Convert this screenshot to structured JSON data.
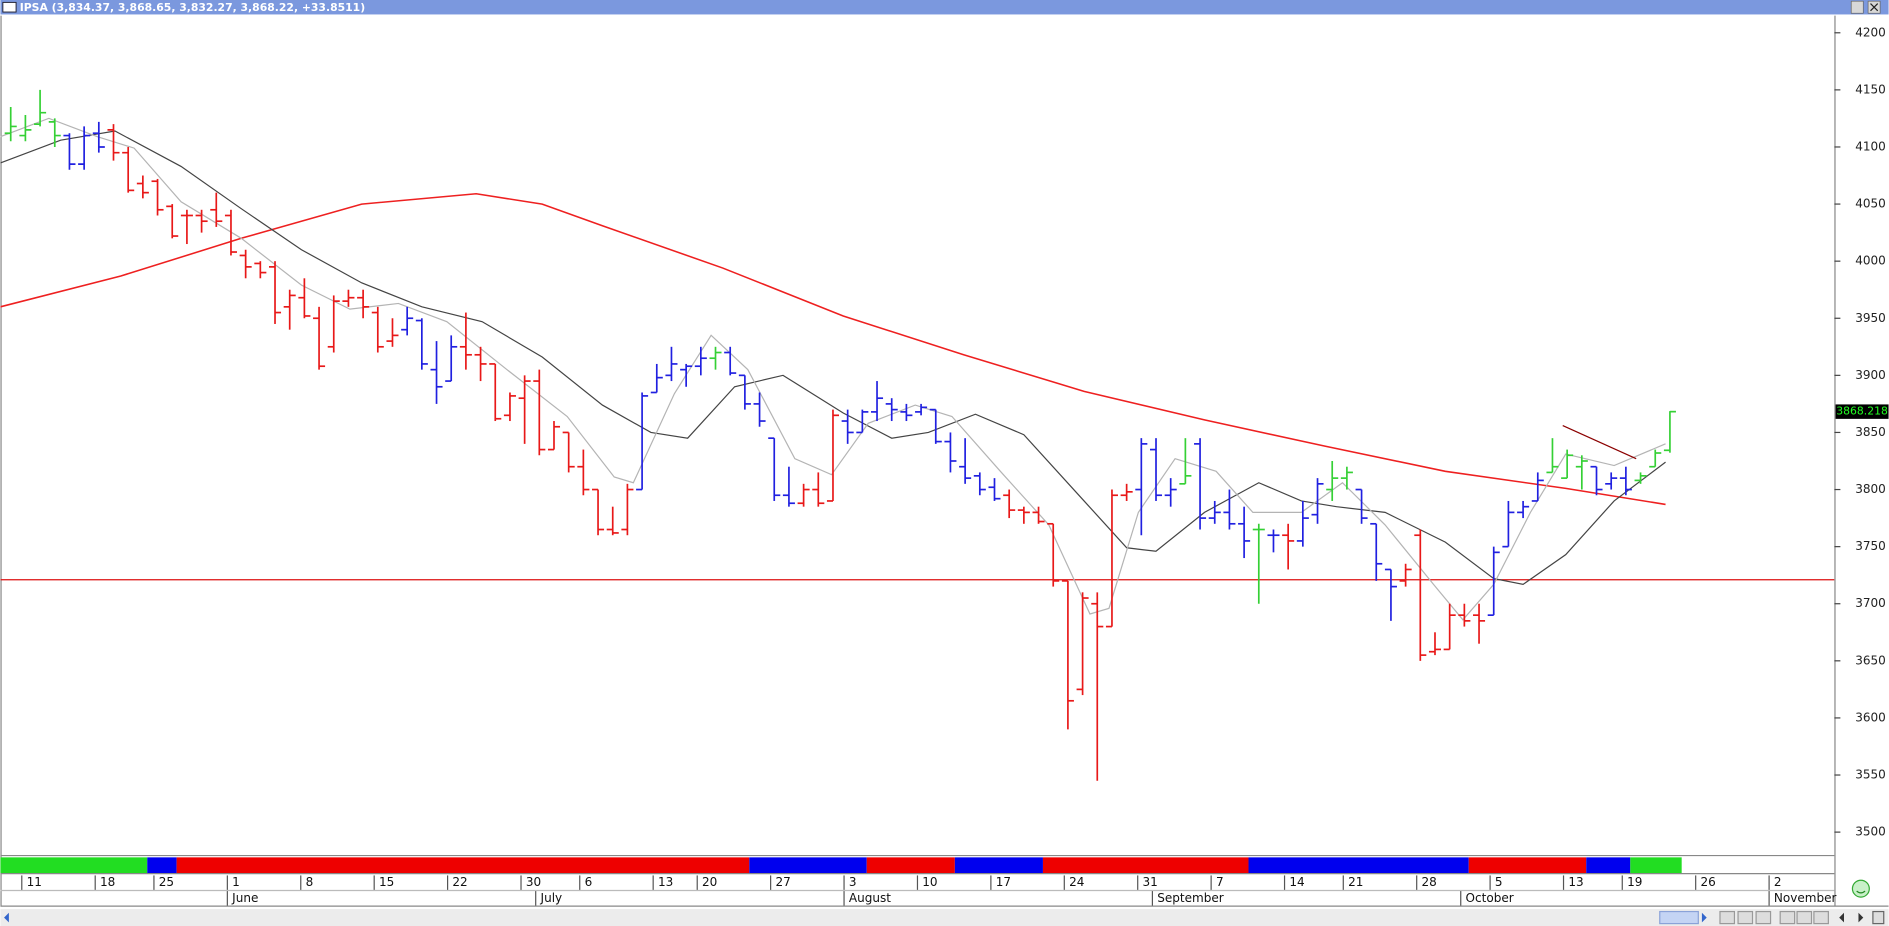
{
  "chart_data": {
    "type": "ohlc",
    "title": "IPSA (3,834.37, 3,868.65, 3,832.27, 3,868.22, +33.8511)",
    "x": [
      0,
      1,
      2,
      3,
      4,
      5,
      6,
      7,
      8,
      9,
      10,
      11,
      12,
      13,
      14,
      15,
      16,
      17,
      18,
      19,
      20,
      21,
      22,
      23,
      24,
      25,
      26,
      27,
      28,
      29,
      30,
      31,
      32,
      33,
      34,
      35,
      36,
      37,
      38,
      39,
      40,
      41,
      42,
      43,
      44,
      45,
      46,
      47,
      48,
      49,
      50,
      51,
      52,
      53,
      54,
      55,
      56,
      57,
      58,
      59,
      60,
      61,
      62,
      63,
      64,
      65,
      66,
      67,
      68,
      69,
      70,
      71,
      72,
      73,
      74,
      75,
      76,
      77,
      78,
      79,
      80,
      81,
      82,
      83,
      84,
      85,
      86,
      87,
      88,
      89,
      90,
      91,
      92,
      93,
      94,
      95,
      96,
      97,
      98,
      99,
      100,
      101,
      102,
      103,
      104,
      105,
      106,
      107,
      108,
      109,
      110,
      111,
      112,
      113
    ],
    "open": [
      4112,
      4110,
      4120,
      4122,
      4110,
      4085,
      4112,
      4115,
      4095,
      4068,
      4070,
      4048,
      4040,
      4040,
      4045,
      4040,
      4005,
      3998,
      3995,
      3960,
      3968,
      3950,
      3925,
      3965,
      3968,
      3955,
      3930,
      3940,
      3948,
      3905,
      3895,
      3925,
      3918,
      3910,
      3865,
      3880,
      3895,
      3835,
      3850,
      3820,
      3800,
      3765,
      3765,
      3800,
      3885,
      3900,
      3905,
      3908,
      3915,
      3920,
      3900,
      3875,
      3845,
      3795,
      3788,
      3800,
      3790,
      3860,
      3850,
      3868,
      3875,
      3868,
      3868,
      3870,
      3842,
      3820,
      3812,
      3802,
      3795,
      3782,
      3780,
      3770,
      3720,
      3625,
      3700,
      3680,
      3795,
      3800,
      3835,
      3795,
      3805,
      3840,
      3775,
      3780,
      3770,
      3765,
      3760,
      3760,
      3755,
      3778,
      3800,
      3810,
      3800,
      3770,
      3730,
      3720,
      3760,
      3658,
      3660,
      3690,
      3690,
      3690,
      3750,
      3780,
      3790,
      3815,
      3810,
      3820,
      3820,
      3805,
      3810,
      3808,
      3820,
      3834.37
    ],
    "high": [
      4135,
      4128,
      4150,
      4125,
      4112,
      4118,
      4122,
      4120,
      4100,
      4075,
      4072,
      4050,
      4045,
      4045,
      4060,
      4045,
      4010,
      4000,
      4000,
      3975,
      3985,
      3960,
      3970,
      3975,
      3975,
      3960,
      3950,
      3960,
      3950,
      3930,
      3935,
      3955,
      3925,
      3910,
      3885,
      3900,
      3905,
      3860,
      3850,
      3835,
      3800,
      3785,
      3805,
      3885,
      3910,
      3925,
      3910,
      3925,
      3925,
      3925,
      3900,
      3885,
      3845,
      3820,
      3805,
      3815,
      3870,
      3870,
      3870,
      3895,
      3880,
      3875,
      3875,
      3870,
      3850,
      3845,
      3815,
      3810,
      3800,
      3785,
      3785,
      3770,
      3720,
      3710,
      3710,
      3800,
      3805,
      3845,
      3845,
      3810,
      3845,
      3845,
      3790,
      3800,
      3785,
      3770,
      3765,
      3770,
      3790,
      3810,
      3825,
      3820,
      3800,
      3770,
      3730,
      3735,
      3765,
      3675,
      3700,
      3700,
      3700,
      3750,
      3790,
      3790,
      3815,
      3845,
      3835,
      3830,
      3820,
      3815,
      3820,
      3815,
      3835,
      3868.65
    ],
    "low": [
      4105,
      4105,
      4118,
      4100,
      4080,
      4080,
      4095,
      4088,
      4060,
      4055,
      4040,
      4020,
      4015,
      4025,
      4030,
      4005,
      3985,
      3985,
      3945,
      3940,
      3950,
      3905,
      3920,
      3960,
      3950,
      3920,
      3925,
      3935,
      3905,
      3875,
      3895,
      3905,
      3895,
      3860,
      3860,
      3840,
      3830,
      3835,
      3815,
      3795,
      3760,
      3760,
      3760,
      3800,
      3885,
      3895,
      3890,
      3900,
      3905,
      3900,
      3870,
      3855,
      3790,
      3785,
      3785,
      3785,
      3790,
      3840,
      3850,
      3860,
      3860,
      3860,
      3865,
      3840,
      3815,
      3805,
      3795,
      3790,
      3775,
      3770,
      3770,
      3715,
      3590,
      3620,
      3545,
      3680,
      3790,
      3760,
      3790,
      3785,
      3805,
      3765,
      3770,
      3765,
      3740,
      3700,
      3745,
      3730,
      3750,
      3770,
      3790,
      3800,
      3770,
      3720,
      3685,
      3715,
      3650,
      3655,
      3660,
      3680,
      3665,
      3690,
      3750,
      3775,
      3790,
      3815,
      3810,
      3800,
      3795,
      3800,
      3795,
      3805,
      3820,
      3832.27
    ],
    "close": [
      4118,
      4115,
      4130,
      4110,
      4085,
      4110,
      4100,
      4095,
      4062,
      4060,
      4045,
      4022,
      4040,
      4035,
      4035,
      4008,
      3995,
      3990,
      3955,
      3970,
      3952,
      3908,
      3965,
      3968,
      3960,
      3925,
      3935,
      3950,
      3910,
      3890,
      3925,
      3918,
      3910,
      3862,
      3882,
      3895,
      3835,
      3855,
      3820,
      3800,
      3765,
      3762,
      3800,
      3882,
      3898,
      3910,
      3908,
      3915,
      3920,
      3902,
      3875,
      3860,
      3795,
      3788,
      3800,
      3788,
      3865,
      3850,
      3868,
      3880,
      3870,
      3865,
      3872,
      3842,
      3825,
      3810,
      3800,
      3792,
      3782,
      3780,
      3772,
      3720,
      3615,
      3705,
      3680,
      3795,
      3798,
      3840,
      3795,
      3800,
      3812,
      3775,
      3780,
      3770,
      3755,
      3765,
      3760,
      3755,
      3775,
      3805,
      3810,
      3815,
      3775,
      3735,
      3715,
      3730,
      3655,
      3660,
      3690,
      3685,
      3685,
      3745,
      3780,
      3785,
      3808,
      3820,
      3830,
      3825,
      3800,
      3810,
      3800,
      3812,
      3832,
      3868.22
    ],
    "colors": [
      "#35d035",
      "#35d035",
      "#35d035",
      "#35d035",
      "#2020e0",
      "#2020e0",
      "#2020e0",
      "#e81818",
      "#e81818",
      "#e81818",
      "#e81818",
      "#e81818",
      "#e81818",
      "#e81818",
      "#e81818",
      "#e81818",
      "#e81818",
      "#e81818",
      "#e81818",
      "#e81818",
      "#e81818",
      "#e81818",
      "#e81818",
      "#e81818",
      "#e81818",
      "#e81818",
      "#e81818",
      "#2020e0",
      "#2020e0",
      "#2020e0",
      "#2020e0",
      "#e81818",
      "#e81818",
      "#e81818",
      "#e81818",
      "#e81818",
      "#e81818",
      "#e81818",
      "#e81818",
      "#e81818",
      "#e81818",
      "#e81818",
      "#e81818",
      "#2020e0",
      "#2020e0",
      "#2020e0",
      "#2020e0",
      "#2020e0",
      "#35d035",
      "#2020e0",
      "#2020e0",
      "#2020e0",
      "#2020e0",
      "#2020e0",
      "#e81818",
      "#e81818",
      "#e81818",
      "#2020e0",
      "#2020e0",
      "#2020e0",
      "#2020e0",
      "#2020e0",
      "#2020e0",
      "#2020e0",
      "#2020e0",
      "#2020e0",
      "#2020e0",
      "#2020e0",
      "#e81818",
      "#e81818",
      "#e81818",
      "#e81818",
      "#e81818",
      "#e81818",
      "#e81818",
      "#e81818",
      "#e81818",
      "#2020e0",
      "#2020e0",
      "#2020e0",
      "#35d035",
      "#2020e0",
      "#2020e0",
      "#2020e0",
      "#2020e0",
      "#35d035",
      "#2020e0",
      "#e81818",
      "#2020e0",
      "#2020e0",
      "#35d035",
      "#35d035",
      "#2020e0",
      "#2020e0",
      "#2020e0",
      "#e81818",
      "#e81818",
      "#e81818",
      "#e81818",
      "#e81818",
      "#e81818",
      "#2020e0",
      "#2020e0",
      "#2020e0",
      "#2020e0",
      "#35d035",
      "#35d035",
      "#35d035",
      "#2020e0",
      "#2020e0",
      "#2020e0",
      "#35d035",
      "#35d035",
      "#35d035"
    ],
    "overlays": [
      {
        "color": "#ee2020",
        "x": [
          -0.7,
          7.5,
          15.7,
          23.9,
          31.7,
          36.2,
          40.3,
          48.5,
          56.7,
          64.9,
          73.1,
          81.3,
          89.5,
          97.7,
          105.9,
          112.7
        ],
        "values": [
          3960,
          3987,
          4020,
          4050,
          4059,
          4050,
          4031,
          3994,
          3952,
          3918,
          3886,
          3861,
          3838,
          3816,
          3801,
          3787
        ]
      },
      {
        "color": "#444444",
        "x": [
          -0.7,
          3.4,
          7.1,
          11.6,
          15.7,
          19.8,
          23.9,
          28.0,
          32.1,
          36.2,
          40.3,
          43.6,
          46.1,
          49.3,
          52.6,
          56.7,
          60.0,
          62.5,
          65.7,
          69.0,
          73.1,
          76.0,
          78.0,
          81.3,
          85.0,
          87.9,
          90.3,
          93.6,
          97.7,
          101.0,
          103.0,
          105.9,
          109.2,
          112.7
        ],
        "values": [
          4086,
          4106,
          4114,
          4083,
          4046,
          4010,
          3981,
          3960,
          3947,
          3916,
          3874,
          3850,
          3845,
          3890,
          3900,
          3867,
          3845,
          3850,
          3866,
          3848,
          3790,
          3749,
          3746,
          3780,
          3806,
          3790,
          3785,
          3780,
          3754,
          3722,
          3717,
          3743,
          3790,
          3824
        ]
      },
      {
        "color": "#b4b4b4",
        "x": [
          -0.7,
          2.6,
          5.9,
          8.4,
          11.6,
          15.7,
          19.8,
          23.1,
          26.4,
          29.7,
          33.8,
          37.9,
          41.1,
          42.4,
          45.2,
          47.7,
          50.2,
          53.4,
          55.9,
          58.4,
          61.6,
          64.1,
          67.4,
          70.7,
          73.5,
          74.8,
          76.8,
          79.3,
          82.1,
          84.6,
          87.9,
          90.7,
          93.6,
          96.9,
          98.9,
          101.0,
          103.5,
          105.9,
          109.2,
          112.7
        ],
        "values": [
          4109,
          4125,
          4109,
          4099,
          4052,
          4020,
          3979,
          3958,
          3963,
          3947,
          3905,
          3864,
          3811,
          3806,
          3884,
          3935,
          3905,
          3827,
          3813,
          3858,
          3874,
          3864,
          3816,
          3769,
          3691,
          3696,
          3780,
          3827,
          3816,
          3780,
          3780,
          3806,
          3769,
          3717,
          3686,
          3717,
          3780,
          3831,
          3821,
          3840
        ]
      },
      {
        "color": "#8b0000",
        "x": [
          105.7,
          110.7
        ],
        "values": [
          3856,
          3827
        ]
      }
    ],
    "hline": {
      "value": 3721,
      "color": "#dd1010"
    },
    "last_value": 3868.218,
    "regime_band": [
      {
        "start": -0.7,
        "end": 9.3,
        "color": "#22dd22"
      },
      {
        "start": 9.3,
        "end": 11.3,
        "color": "#0000ee"
      },
      {
        "start": 11.3,
        "end": 50.3,
        "color": "#ee0000"
      },
      {
        "start": 50.3,
        "end": 58.3,
        "color": "#0000ee"
      },
      {
        "start": 58.3,
        "end": 64.3,
        "color": "#ee0000"
      },
      {
        "start": 64.3,
        "end": 70.3,
        "color": "#0000ee"
      },
      {
        "start": 70.3,
        "end": 84.3,
        "color": "#ee0000"
      },
      {
        "start": 84.3,
        "end": 99.3,
        "color": "#0000ee"
      },
      {
        "start": 99.3,
        "end": 107.3,
        "color": "#ee0000"
      },
      {
        "start": 107.3,
        "end": 110.3,
        "color": "#0000ee"
      },
      {
        "start": 110.3,
        "end": 113.8,
        "color": "#22dd22"
      }
    ],
    "xlim": [
      -0.7,
      124.2
    ],
    "ylim": [
      3480,
      4215
    ],
    "yticks": [
      3500,
      3550,
      3600,
      3650,
      3700,
      3750,
      3800,
      3850,
      3900,
      3950,
      4000,
      4050,
      4100,
      4150,
      4200
    ],
    "xticks": [
      {
        "value": 1,
        "label": "11"
      },
      {
        "value": 6,
        "label": "18"
      },
      {
        "value": 10,
        "label": "25"
      },
      {
        "value": 15,
        "label": "1"
      },
      {
        "value": 20,
        "label": "8"
      },
      {
        "value": 25,
        "label": "15"
      },
      {
        "value": 30,
        "label": "22"
      },
      {
        "value": 35,
        "label": "30"
      },
      {
        "value": 39,
        "label": "6"
      },
      {
        "value": 44,
        "label": "13"
      },
      {
        "value": 47,
        "label": "20"
      },
      {
        "value": 52,
        "label": "27"
      },
      {
        "value": 57,
        "label": "3"
      },
      {
        "value": 62,
        "label": "10"
      },
      {
        "value": 67,
        "label": "17"
      },
      {
        "value": 72,
        "label": "24"
      },
      {
        "value": 77,
        "label": "31"
      },
      {
        "value": 82,
        "label": "7"
      },
      {
        "value": 87,
        "label": "14"
      },
      {
        "value": 91,
        "label": "21"
      },
      {
        "value": 96,
        "label": "28"
      },
      {
        "value": 101,
        "label": "5"
      },
      {
        "value": 106,
        "label": "13"
      },
      {
        "value": 110,
        "label": "19"
      },
      {
        "value": 115,
        "label": "26"
      },
      {
        "value": 120,
        "label": "2"
      }
    ],
    "month_ticks": [
      {
        "value": 15,
        "label": "June"
      },
      {
        "value": 36,
        "label": "July"
      },
      {
        "value": 57,
        "label": "August"
      },
      {
        "value": 78,
        "label": "September"
      },
      {
        "value": 99,
        "label": "October"
      },
      {
        "value": 120,
        "label": "November"
      }
    ]
  }
}
